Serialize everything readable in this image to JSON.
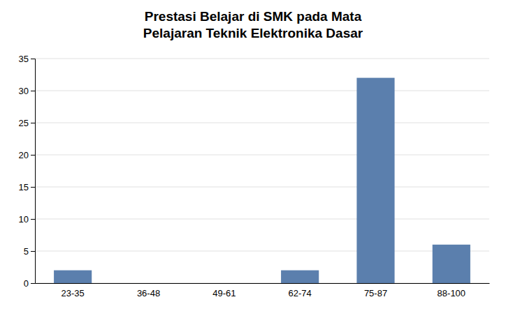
{
  "chart_data": {
    "type": "bar",
    "title": "Prestasi Belajar di SMK pada Mata\nPelajaran Teknik Elektronika Dasar",
    "categories": [
      "23-35",
      "36-48",
      "49-61",
      "62-74",
      "75-87",
      "88-100"
    ],
    "values": [
      2,
      0,
      0,
      2,
      32,
      6
    ],
    "color": "#5b7fad",
    "ylim": [
      0,
      35
    ],
    "yticks": [
      0,
      5,
      10,
      15,
      20,
      25,
      30,
      35
    ],
    "grid": true
  }
}
